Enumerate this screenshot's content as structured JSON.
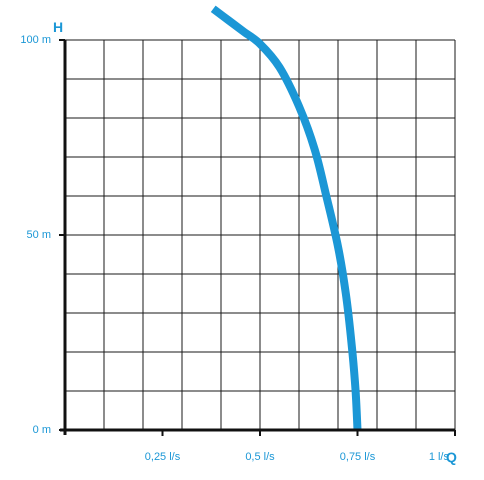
{
  "colors": {
    "accent": "#1b97d6",
    "grid": "#1a1a1a",
    "axis": "#111111"
  },
  "chart_data": {
    "type": "line",
    "title": "",
    "xlabel": "Q",
    "ylabel": "H",
    "xlim": [
      0,
      1
    ],
    "ylim": [
      0,
      100
    ],
    "grid": true,
    "x_ticks": [
      {
        "value": 0.25,
        "label": "0,25 l/s"
      },
      {
        "value": 0.5,
        "label": "0,5 l/s"
      },
      {
        "value": 0.75,
        "label": "0,75 l/s"
      },
      {
        "value": 1,
        "label": "1 l/s"
      }
    ],
    "y_ticks": [
      {
        "value": 0,
        "label": "0 m"
      },
      {
        "value": 50,
        "label": "50 m"
      },
      {
        "value": 100,
        "label": "100 m"
      }
    ],
    "series": [
      {
        "x": [
          0.38,
          0.42,
          0.46,
          0.5,
          0.55,
          0.6,
          0.64,
          0.67,
          0.7,
          0.72,
          0.735,
          0.745,
          0.75
        ],
        "y": [
          108,
          105,
          102,
          99,
          93,
          83,
          72,
          60,
          47,
          35,
          22,
          10,
          0
        ]
      }
    ]
  }
}
